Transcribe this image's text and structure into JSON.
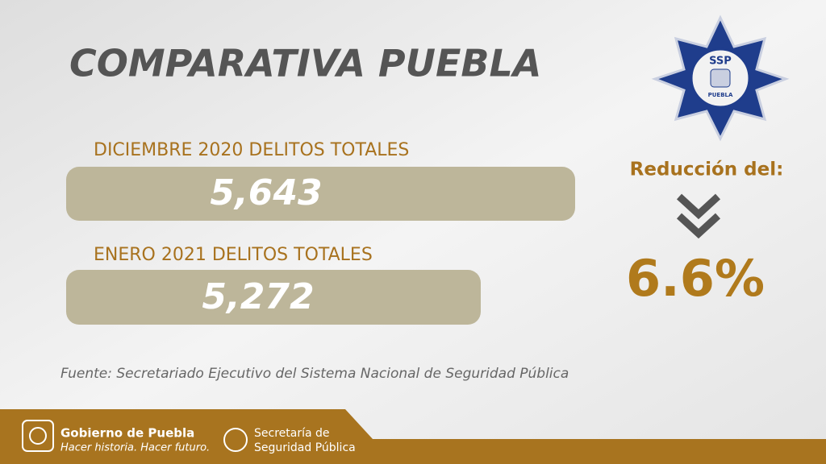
{
  "header": {
    "title": "COMPARATIVA PUEBLA"
  },
  "logo": {
    "text": "SSP",
    "subtext": "PUEBLA"
  },
  "items": [
    {
      "label": "DICIEMBRE 2020  DELITOS TOTALES",
      "value": "5,643"
    },
    {
      "label": "ENERO  2021 DELITOS TOTALES",
      "value": "5,272"
    }
  ],
  "reduction": {
    "label": "Reducción del:",
    "value": "6.6%"
  },
  "source": "Fuente: Secretariado Ejecutivo del Sistema Nacional de Seguridad Pública",
  "footer": {
    "gov_name": "Gobierno de Puebla",
    "gov_slogan": "Hacer historia. Hacer futuro.",
    "secretaria": [
      "Secretaría de",
      "Seguridad Pública"
    ]
  }
}
